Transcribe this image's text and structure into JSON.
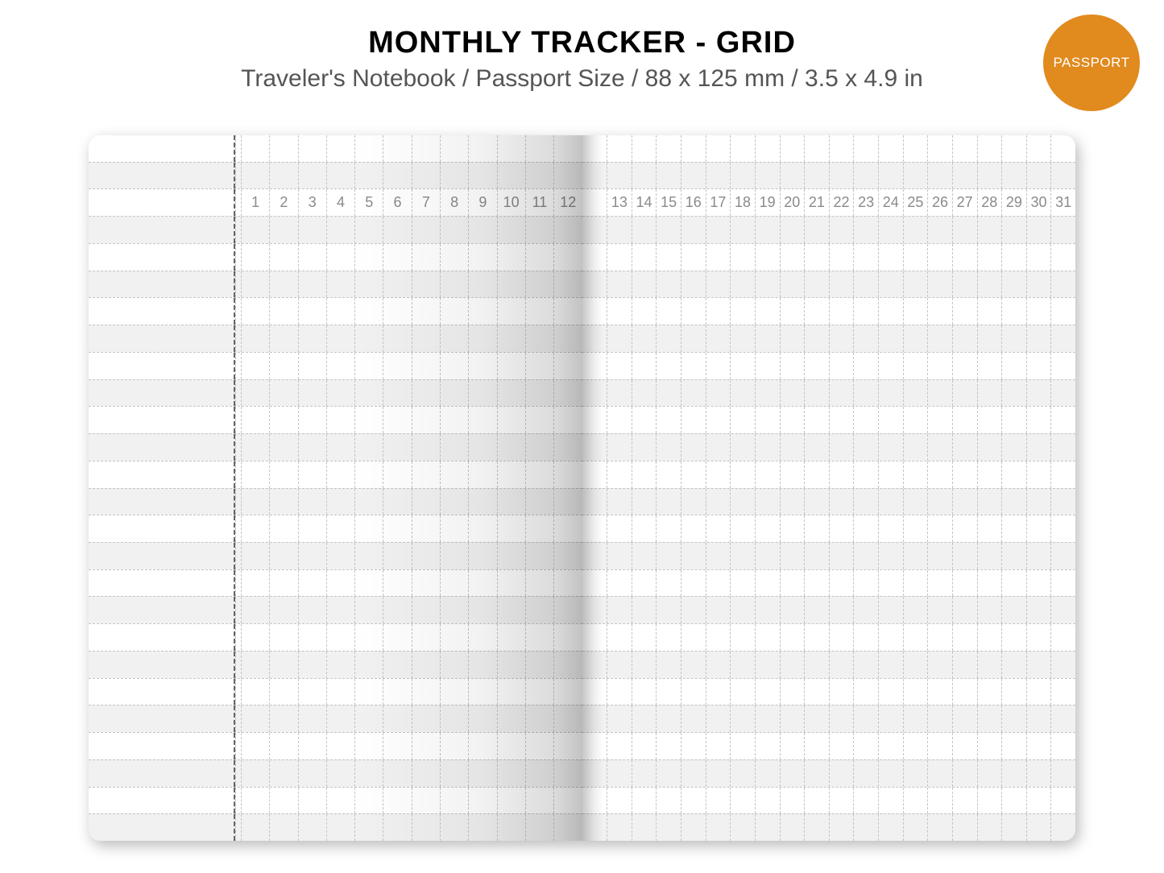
{
  "header": {
    "title": "MONTHLY TRACKER - GRID",
    "subtitle": "Traveler's Notebook / Passport Size / 88 x 125 mm / 3.5 x 4.9 in"
  },
  "badge": {
    "label": "PASSPORT",
    "bg_color": "#e18a1e",
    "text_color": "#ffffff"
  },
  "layout": {
    "rows": 26,
    "header_row_index": 2,
    "left_page": {
      "label_column": true,
      "days": [
        1,
        2,
        3,
        4,
        5,
        6,
        7,
        8,
        9,
        10,
        11,
        12
      ]
    },
    "right_page": {
      "gap_cols_before_days": 1,
      "days": [
        13,
        14,
        15,
        16,
        17,
        18,
        19,
        20,
        21,
        22,
        23,
        24,
        25,
        26,
        27,
        28,
        29,
        30,
        31
      ]
    },
    "alternating_shade": true,
    "shade_color": "rgba(0,0,0,0.055)",
    "grid_line": "1px dashed #c4c4c4",
    "divider_line": "2px dashed #666666",
    "day_number_color": "#8a8a8a",
    "day_number_fontsize": 18
  },
  "colors": {
    "background": "#ffffff",
    "title_color": "#000000",
    "subtitle_color": "#555555"
  }
}
